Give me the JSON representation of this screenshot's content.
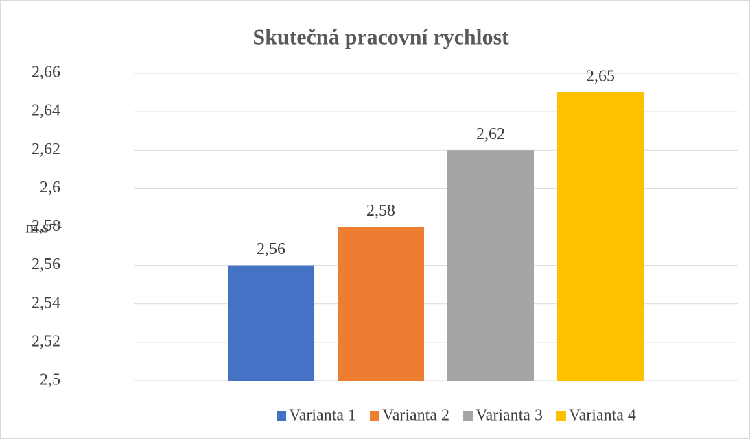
{
  "chart_data": {
    "type": "bar",
    "title": "Skutečná pracovní rychlost",
    "y_label": "m.s⁻¹",
    "categories": [
      null
    ],
    "series": [
      {
        "name": "Varianta 1",
        "color": "#4472c4",
        "values": [
          2.56
        ],
        "value_labels": [
          "2,56"
        ]
      },
      {
        "name": "Varianta 2",
        "color": "#ed7d31",
        "values": [
          2.58
        ],
        "value_labels": [
          "2,58"
        ]
      },
      {
        "name": "Varianta 3",
        "color": "#a5a5a5",
        "values": [
          2.62
        ],
        "value_labels": [
          "2,62"
        ]
      },
      {
        "name": "Varianta 4",
        "color": "#ffc000",
        "values": [
          2.65
        ],
        "value_labels": [
          "2,65"
        ]
      }
    ],
    "ylim": [
      2.5,
      2.66
    ],
    "yticks": [
      {
        "value": 2.5,
        "label": "2,5"
      },
      {
        "value": 2.52,
        "label": "2,52"
      },
      {
        "value": 2.54,
        "label": "2,54"
      },
      {
        "value": 2.56,
        "label": "2,56"
      },
      {
        "value": 2.58,
        "label": "2,58"
      },
      {
        "value": 2.6,
        "label": "2,6"
      },
      {
        "value": 2.62,
        "label": "2,62"
      },
      {
        "value": 2.64,
        "label": "2,64"
      },
      {
        "value": 2.66,
        "label": "2,66"
      }
    ],
    "grid": true,
    "legend": "bottom"
  }
}
